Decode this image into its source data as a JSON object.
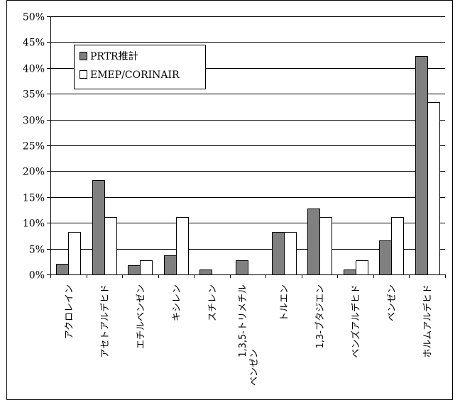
{
  "chart_data": {
    "type": "bar",
    "title": "",
    "xlabel": "",
    "ylabel": "",
    "ylim": [
      0,
      50
    ],
    "y_ticks": [
      "0%",
      "5%",
      "10%",
      "15%",
      "20%",
      "25%",
      "30%",
      "35%",
      "40%",
      "45%",
      "50%"
    ],
    "y_tick_values": [
      0,
      5,
      10,
      15,
      20,
      25,
      30,
      35,
      40,
      45,
      50
    ],
    "grid": true,
    "legend_position": "top-left",
    "categories": [
      "アクロレイン",
      "アセトアルデヒド",
      "エチルベンゼン",
      "キシレン",
      "スチレン",
      "1,3,5-トリメチルベンゼン",
      "トルエン",
      "1,3-ブタジエン",
      "ベンズアルデヒド",
      "ベンゼン",
      "ホルムアルデヒド"
    ],
    "series": [
      {
        "name": "PRTR推計",
        "color": "#808080",
        "values": [
          2.0,
          18.3,
          1.8,
          3.7,
          0.9,
          2.8,
          8.3,
          12.8,
          0.9,
          6.6,
          42.3
        ]
      },
      {
        "name": "EMEP/CORINAIR",
        "color": "#ffffff",
        "values": [
          8.3,
          11.1,
          2.8,
          11.1,
          0,
          0,
          8.3,
          11.1,
          2.8,
          11.1,
          33.4
        ]
      }
    ]
  }
}
